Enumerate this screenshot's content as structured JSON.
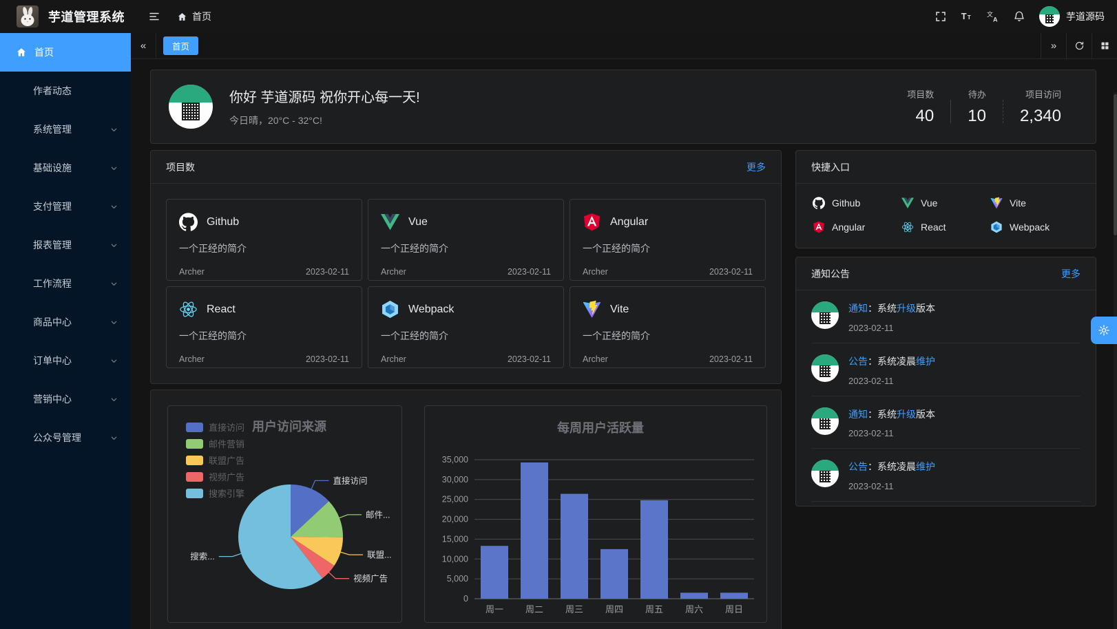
{
  "colors": {
    "accent": "#409eff",
    "sidebar_bg": "#041528",
    "panel_bg": "#1d1e1f",
    "page_bg": "#141414",
    "avatar_green": "#2aa87e",
    "bar_color": "#5b76c9",
    "pie_palette": [
      "#5470c6",
      "#91cc75",
      "#fac858",
      "#ee6666",
      "#73c0de"
    ]
  },
  "topbar": {
    "app_title": "芋道管理系统",
    "breadcrumb_home": "首页",
    "username": "芋道源码",
    "icons": [
      "hamburger-icon",
      "home-icon",
      "fullscreen-icon",
      "font-size-icon",
      "language-icon",
      "bell-icon",
      "avatar"
    ]
  },
  "sidebar": {
    "items": [
      {
        "key": "home",
        "label": "首页",
        "active": true,
        "expandable": false
      },
      {
        "key": "author-news",
        "label": "作者动态",
        "active": false,
        "expandable": false
      },
      {
        "key": "system",
        "label": "系统管理",
        "active": false,
        "expandable": true
      },
      {
        "key": "infrastructure",
        "label": "基础设施",
        "active": false,
        "expandable": true
      },
      {
        "key": "payment",
        "label": "支付管理",
        "active": false,
        "expandable": true
      },
      {
        "key": "report",
        "label": "报表管理",
        "active": false,
        "expandable": true
      },
      {
        "key": "workflow",
        "label": "工作流程",
        "active": false,
        "expandable": true
      },
      {
        "key": "product",
        "label": "商品中心",
        "active": false,
        "expandable": true
      },
      {
        "key": "order",
        "label": "订单中心",
        "active": false,
        "expandable": true
      },
      {
        "key": "marketing",
        "label": "营销中心",
        "active": false,
        "expandable": true
      },
      {
        "key": "official-account",
        "label": "公众号管理",
        "active": false,
        "expandable": true
      }
    ]
  },
  "tabbar": {
    "tabs": [
      {
        "label": "首页",
        "active": true
      }
    ],
    "tools": [
      "collapse-left-icon",
      "expand-right-icon",
      "refresh-icon",
      "layout-grid-icon"
    ]
  },
  "welcome": {
    "greeting": "你好 芋道源码 祝你开心每一天!",
    "weather": "今日晴，20°C - 32°C!",
    "stats": [
      {
        "label": "项目数",
        "value": "40"
      },
      {
        "label": "待办",
        "value": "10"
      },
      {
        "label": "项目访问",
        "value": "2,340"
      }
    ]
  },
  "projects": {
    "title": "项目数",
    "more": "更多",
    "description": "一个正经的简介",
    "author": "Archer",
    "date": "2023-02-11",
    "items": [
      {
        "name": "Github",
        "icon": "github"
      },
      {
        "name": "Vue",
        "icon": "vue"
      },
      {
        "name": "Angular",
        "icon": "angular"
      },
      {
        "name": "React",
        "icon": "react"
      },
      {
        "name": "Webpack",
        "icon": "webpack"
      },
      {
        "name": "Vite",
        "icon": "vite"
      }
    ]
  },
  "shortcuts": {
    "title": "快捷入口",
    "items": [
      {
        "name": "Github",
        "icon": "github"
      },
      {
        "name": "Vue",
        "icon": "vue"
      },
      {
        "name": "Vite",
        "icon": "vite"
      },
      {
        "name": "Angular",
        "icon": "angular"
      },
      {
        "name": "React",
        "icon": "react"
      },
      {
        "name": "Webpack",
        "icon": "webpack"
      }
    ]
  },
  "notice": {
    "title": "通知公告",
    "more": "更多",
    "items": [
      {
        "parts": [
          {
            "text": "通知",
            "highlight": true
          },
          {
            "text": "：系统",
            "highlight": false
          },
          {
            "text": "升级",
            "highlight": true
          },
          {
            "text": "版本",
            "highlight": false
          }
        ],
        "date": "2023-02-11"
      },
      {
        "parts": [
          {
            "text": "公告",
            "highlight": true
          },
          {
            "text": "：系统凌晨",
            "highlight": false
          },
          {
            "text": "维护",
            "highlight": true
          }
        ],
        "date": "2023-02-11"
      },
      {
        "parts": [
          {
            "text": "通知",
            "highlight": true
          },
          {
            "text": "：系统",
            "highlight": false
          },
          {
            "text": "升级",
            "highlight": true
          },
          {
            "text": "版本",
            "highlight": false
          }
        ],
        "date": "2023-02-11"
      },
      {
        "parts": [
          {
            "text": "公告",
            "highlight": true
          },
          {
            "text": "：系统凌晨",
            "highlight": false
          },
          {
            "text": "维护",
            "highlight": true
          }
        ],
        "date": "2023-02-11"
      }
    ]
  },
  "chart_data": [
    {
      "type": "pie",
      "title": "用户访问来源",
      "legend_position": "top-left",
      "legend": [
        "直接访问",
        "邮件营销",
        "联盟广告",
        "视频广告",
        "搜索引擎"
      ],
      "series": [
        {
          "name": "直接访问",
          "value": 335
        },
        {
          "name": "邮件营销",
          "value": 310
        },
        {
          "name": "联盟广告",
          "value": 234
        },
        {
          "name": "视频广告",
          "value": 135
        },
        {
          "name": "搜索引擎",
          "value": 1548
        }
      ],
      "labels_display": [
        "直接访问",
        "邮件...",
        "联盟...",
        "视频广告",
        "搜索..."
      ],
      "colors": [
        "#5470c6",
        "#91cc75",
        "#fac858",
        "#ee6666",
        "#73c0de"
      ]
    },
    {
      "type": "bar",
      "title": "每周用户活跃量",
      "categories": [
        "周一",
        "周二",
        "周三",
        "周四",
        "周五",
        "周六",
        "周日"
      ],
      "values": [
        13300,
        34300,
        26400,
        12500,
        24800,
        1500,
        1500
      ],
      "xlabel": "",
      "ylabel": "",
      "ylim": [
        0,
        35000
      ],
      "ytick_step": 5000,
      "grid": true,
      "bar_color": "#5b76c9"
    }
  ]
}
